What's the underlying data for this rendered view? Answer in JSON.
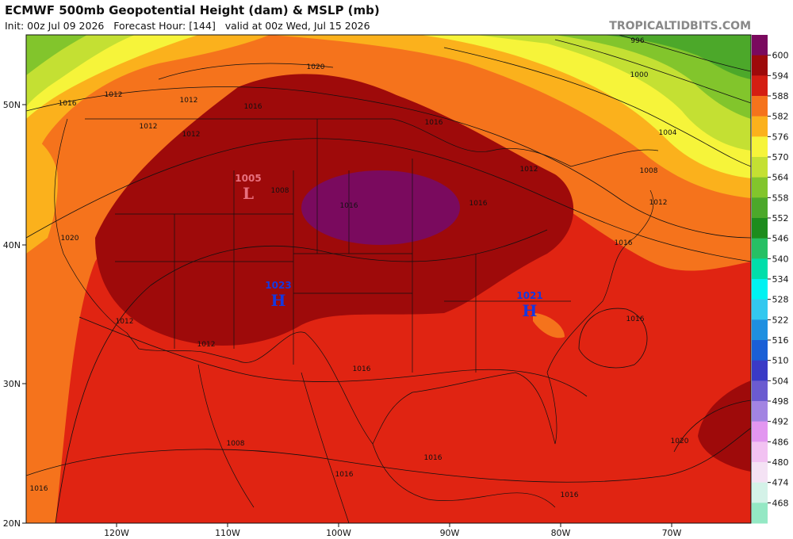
{
  "header": {
    "title": "ECMWF 500mb Geopotential Height (dam) & MSLP (mb)",
    "subtitle": "Init: 00z Jul 09 2026   Forecast Hour: [144]   valid at 00z Wed, Jul 15 2026",
    "site": "TROPICALTIDBITS.COM"
  },
  "axes": {
    "latitudes": [
      "50N",
      "40N",
      "30N",
      "20N"
    ],
    "longitudes": [
      "120W",
      "110W",
      "100W",
      "90W",
      "80W",
      "70W"
    ]
  },
  "colorbar": {
    "ticks": [
      600,
      594,
      588,
      582,
      576,
      570,
      564,
      558,
      552,
      546,
      540,
      534,
      528,
      522,
      516,
      510,
      504,
      498,
      492,
      486,
      480,
      474,
      468
    ],
    "colors": [
      "#7a0a5e",
      "#9e0a0a",
      "#d41e12",
      "#f5731c",
      "#fbb11c",
      "#f6f43a",
      "#c4e033",
      "#82c52c",
      "#4ca82a",
      "#1d8c1d",
      "#26c064",
      "#00deaa",
      "#00f2f2",
      "#33c8ef",
      "#1e8fe0",
      "#1a5fd6",
      "#3a3ac6",
      "#6b5bd0",
      "#a284e2",
      "#e296f0",
      "#f2c2f2",
      "#f4e2f4",
      "#d4f2e8",
      "#94e8c4"
    ]
  },
  "pressure_centers": [
    {
      "letter": "L",
      "value": "1005"
    },
    {
      "letter": "H",
      "value": "1023"
    },
    {
      "letter": "H",
      "value": "1021"
    }
  ],
  "contour_labels": [
    "1020",
    "1012",
    "1012",
    "1016",
    "1016",
    "1016",
    "1012",
    "1012",
    "1012",
    "1008",
    "1012",
    "1016",
    "1016",
    "1008",
    "996",
    "1000",
    "1004",
    "1016",
    "1016",
    "1016",
    "1012",
    "1020",
    "1016",
    "1016",
    "1016",
    "1008",
    "1020",
    "1016",
    "1012"
  ]
}
